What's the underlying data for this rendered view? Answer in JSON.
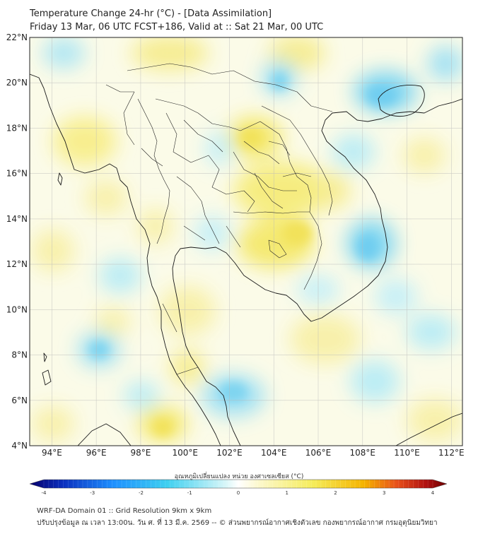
{
  "header": {
    "title": "Temperature Change 24-hr (°C) - [Data Assimilation]",
    "subtitle": "Friday 13 Mar, 06 UTC FCST+186, Valid at :: Sat 21 Mar, 00 UTC"
  },
  "map": {
    "lat_labels": [
      "22°N",
      "20°N",
      "18°N",
      "16°N",
      "14°N",
      "12°N",
      "10°N",
      "8°N",
      "6°N",
      "4°N"
    ],
    "lon_labels": [
      "94°E",
      "96°E",
      "98°E",
      "100°E",
      "102°E",
      "104°E",
      "106°E",
      "108°E",
      "110°E",
      "112°E"
    ],
    "lat_range": [
      4,
      22
    ],
    "lon_range": [
      93,
      112.5
    ]
  },
  "colorbar": {
    "label": "อุณหภูมิเปลี่ยนแปลง หน่วย องศาเซลเซียส (°C)",
    "ticks": [
      "-4",
      "-3",
      "-2",
      "-1",
      "0",
      "1",
      "2",
      "3",
      "4"
    ],
    "colors": [
      "#08006b",
      "#0a2fbf",
      "#1e90ff",
      "#3fd0f0",
      "#d8f6f8",
      "#ffffff",
      "#fcf8cc",
      "#f5ec5a",
      "#f5b400",
      "#e8501a",
      "#b01010",
      "#6b0000"
    ]
  },
  "footer": {
    "line1": "WRF-DA Domain 01 :: Grid Resolution 9km x 9km",
    "line2": "ปรับปรุงข้อมูล ณ เวลา 13:00น. วัน ศ. ที่ 13 มี.ค. 2569 -- © ส่วนพยากรณ์อากาศเชิงตัวเลข กองพยากรณ์อากาศ กรมอุตุนิยมวิทยา"
  }
}
